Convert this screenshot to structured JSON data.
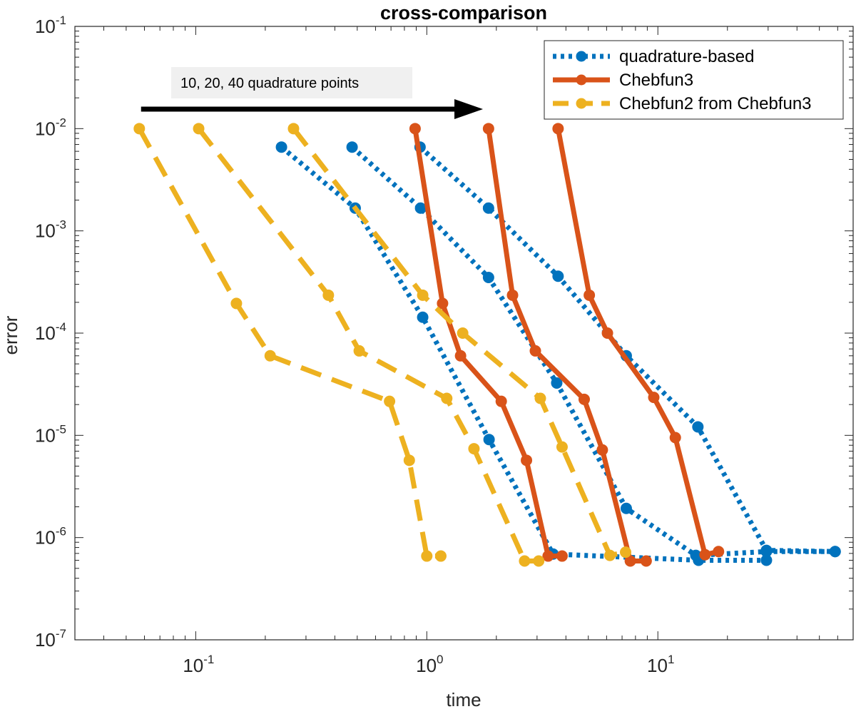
{
  "chart_data": {
    "type": "line",
    "title": "cross-comparison",
    "xlabel": "time",
    "ylabel": "error",
    "xscale": "log",
    "yscale": "log",
    "xlim": [
      0.03,
      70
    ],
    "ylim": [
      1e-07,
      0.1
    ],
    "x_ticks": [
      {
        "value": 0.1,
        "base": "10",
        "exp": "-1"
      },
      {
        "value": 1,
        "base": "10",
        "exp": "0"
      },
      {
        "value": 10,
        "base": "10",
        "exp": "1"
      }
    ],
    "y_ticks": [
      {
        "value": 1e-07,
        "base": "10",
        "exp": "-7"
      },
      {
        "value": 1e-06,
        "base": "10",
        "exp": "-6"
      },
      {
        "value": 1e-05,
        "base": "10",
        "exp": "-5"
      },
      {
        "value": 0.0001,
        "base": "10",
        "exp": "-4"
      },
      {
        "value": 0.001,
        "base": "10",
        "exp": "-3"
      },
      {
        "value": 0.01,
        "base": "10",
        "exp": "-2"
      },
      {
        "value": 0.1,
        "base": "10",
        "exp": "-1"
      }
    ],
    "grid": false,
    "legend_position": "top-right",
    "colors": {
      "blue": "#0072BD",
      "orange": "#D95319",
      "yellow": "#EDB120"
    },
    "annotation": {
      "text": "10, 20, 40 quadrature points",
      "arrow_from": [
        0.058,
        0.0155
      ],
      "arrow_to": [
        1.75,
        0.0155
      ]
    },
    "series": [
      {
        "name": "quadrature-based",
        "color": "#0072BD",
        "dash": "dotted",
        "legend": true,
        "points": [
          [
            0.235,
            0.0066
          ],
          [
            0.49,
            0.00167
          ],
          [
            0.96,
            0.000143
          ],
          [
            1.86,
            9.1e-06
          ],
          [
            3.52,
            6.9e-07
          ],
          [
            15.0,
            6e-07
          ],
          [
            29.5,
            6e-07
          ]
        ]
      },
      {
        "name": "quadrature-based",
        "color": "#0072BD",
        "dash": "dotted",
        "legend": false,
        "points": [
          [
            0.475,
            0.0066
          ],
          [
            0.94,
            0.00167
          ],
          [
            1.85,
            0.00035
          ],
          [
            3.65,
            3.25e-05
          ],
          [
            7.3,
            1.93e-06
          ],
          [
            14.6,
            6.7e-07
          ],
          [
            29.5,
            7.3e-07
          ],
          [
            58.5,
            7.3e-07
          ]
        ]
      },
      {
        "name": "quadrature-based",
        "color": "#0072BD",
        "dash": "dotted",
        "legend": false,
        "points": [
          [
            0.935,
            0.0066
          ],
          [
            1.85,
            0.00167
          ],
          [
            3.7,
            0.00036
          ],
          [
            7.3,
            6e-05
          ],
          [
            14.9,
            1.21e-05
          ],
          [
            29.5,
            7.5e-07
          ],
          [
            58.5,
            7.3e-07
          ]
        ]
      },
      {
        "name": "Chebfun3",
        "color": "#D95319",
        "dash": "solid",
        "legend": true,
        "points": [
          [
            0.89,
            0.01
          ],
          [
            1.17,
            0.000195
          ],
          [
            1.4,
            6e-05
          ],
          [
            2.1,
            2.15e-05
          ],
          [
            2.7,
            5.7e-06
          ],
          [
            3.35,
            6.6e-07
          ],
          [
            3.85,
            6.6e-07
          ]
        ]
      },
      {
        "name": "Chebfun3",
        "color": "#D95319",
        "dash": "solid",
        "legend": false,
        "points": [
          [
            1.85,
            0.01
          ],
          [
            2.35,
            0.000235
          ],
          [
            2.95,
            6.7e-05
          ],
          [
            4.8,
            2.25e-05
          ],
          [
            5.75,
            7.2e-06
          ],
          [
            7.6,
            5.9e-07
          ],
          [
            8.9,
            5.9e-07
          ]
        ]
      },
      {
        "name": "Chebfun3",
        "color": "#D95319",
        "dash": "solid",
        "legend": false,
        "points": [
          [
            3.7,
            0.01
          ],
          [
            5.05,
            0.000235
          ],
          [
            6.05,
            0.0001
          ],
          [
            9.6,
            2.35e-05
          ],
          [
            11.9,
            9.5e-06
          ],
          [
            16.0,
            6.8e-07
          ],
          [
            18.3,
            7.3e-07
          ]
        ]
      },
      {
        "name": "Chebfun2 from Chebfun3",
        "color": "#EDB120",
        "dash": "dashed",
        "legend": true,
        "points": [
          [
            0.057,
            0.01
          ],
          [
            0.15,
            0.000195
          ],
          [
            0.21,
            6e-05
          ],
          [
            0.69,
            2.15e-05
          ],
          [
            0.84,
            5.7e-06
          ],
          [
            1.0,
            6.6e-07
          ],
          [
            1.15,
            6.6e-07
          ]
        ]
      },
      {
        "name": "Chebfun2 from Chebfun3",
        "color": "#EDB120",
        "dash": "dashed",
        "legend": false,
        "points": [
          [
            0.103,
            0.01
          ],
          [
            0.375,
            0.000235
          ],
          [
            0.51,
            6.7e-05
          ],
          [
            1.22,
            2.3e-05
          ],
          [
            1.6,
            7.4e-06
          ],
          [
            2.65,
            5.9e-07
          ],
          [
            3.05,
            5.9e-07
          ]
        ]
      },
      {
        "name": "Chebfun2 from Chebfun3",
        "color": "#EDB120",
        "dash": "dashed",
        "legend": false,
        "points": [
          [
            0.265,
            0.01
          ],
          [
            0.96,
            0.000235
          ],
          [
            1.43,
            0.0001
          ],
          [
            3.1,
            2.3e-05
          ],
          [
            3.85,
            7.7e-06
          ],
          [
            6.2,
            6.7e-07
          ],
          [
            7.25,
            7.2e-07
          ]
        ]
      }
    ]
  }
}
